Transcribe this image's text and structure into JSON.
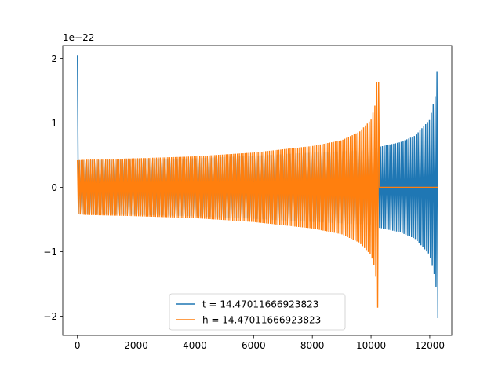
{
  "chart_data": {
    "type": "line",
    "title": "",
    "xlabel": "",
    "ylabel": "",
    "y_multiplier_label": "1e−22",
    "xlim": [
      -500,
      12750
    ],
    "ylim": [
      -2.3,
      2.2
    ],
    "x_ticks": [
      0,
      2000,
      4000,
      6000,
      8000,
      10000,
      12000
    ],
    "x_tick_labels": [
      "0",
      "2000",
      "4000",
      "6000",
      "8000",
      "10000",
      "12000"
    ],
    "y_ticks": [
      -2,
      -1,
      0,
      1,
      2
    ],
    "y_tick_labels": [
      "−2",
      "−1",
      "0",
      "1",
      "2"
    ],
    "grid": false,
    "legend_position": "lower-center",
    "series": [
      {
        "name": "t = 14.47011666923823",
        "color": "#1f77b4",
        "description_points": {
          "x": [
            0,
            10,
            20,
            300,
            2000,
            4000,
            6000,
            8000,
            10000,
            10290,
            11000,
            11500,
            12000,
            12200,
            12280
          ],
          "envelope": [
            2.05,
            1.12,
            0.42,
            0.42,
            0.43,
            0.45,
            0.49,
            0.54,
            0.58,
            0.63,
            0.7,
            0.8,
            1.05,
            1.45,
            2.05
          ]
        }
      },
      {
        "name": "h = 14.47011666923823",
        "color": "#ff7f0e",
        "description_points": {
          "x": [
            0,
            300,
            2000,
            4000,
            6000,
            8000,
            9000,
            9600,
            10000,
            10150,
            10250,
            10290,
            10300,
            12280
          ],
          "envelope": [
            0.42,
            0.43,
            0.45,
            0.48,
            0.54,
            0.64,
            0.73,
            0.86,
            1.05,
            1.3,
            2.05,
            0.0,
            0.0,
            0.0
          ]
        }
      }
    ]
  }
}
